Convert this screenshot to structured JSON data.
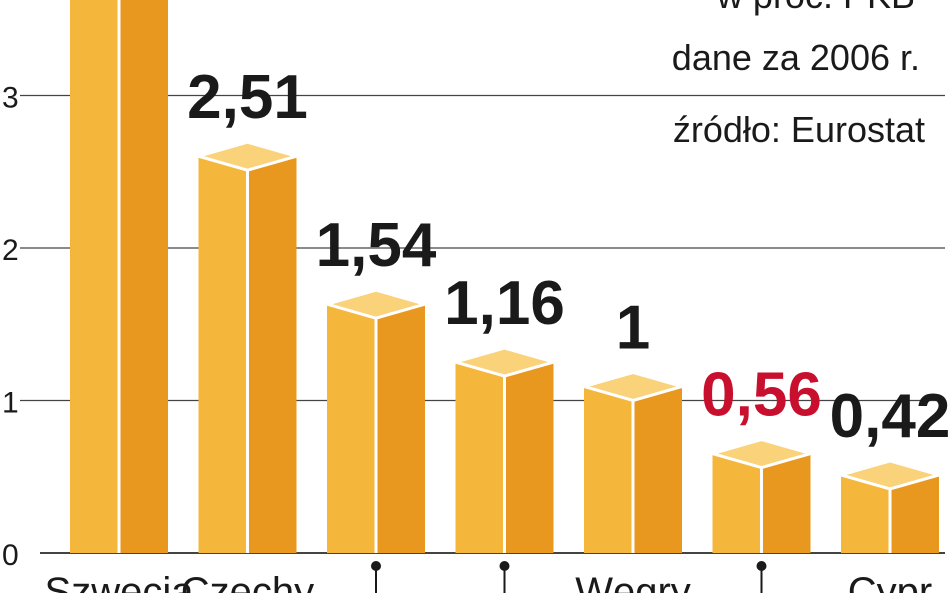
{
  "chart_data": {
    "type": "bar",
    "title": "w proc. PKB",
    "notes": [
      "dane za 2006 r.",
      "źródło: Eurostat"
    ],
    "categories": [
      "Szwecja",
      "Czechy",
      "",
      "",
      "Węgry",
      "",
      "Cypr"
    ],
    "values": [
      3.75,
      2.51,
      1.54,
      1.16,
      1,
      0.56,
      0.42
    ],
    "value_labels": [
      "",
      "2,51",
      "1,54",
      "1,16",
      "1",
      "0,56",
      "0,42"
    ],
    "highlight_index": 5,
    "y_ticks": [
      0,
      1,
      2,
      3
    ],
    "ylim": [
      0,
      3.75
    ],
    "grid": true,
    "colors": {
      "bar_light": "#F4B73C",
      "bar_dark": "#E8981F",
      "bar_top": "#F9D27A",
      "highlight_text": "#C8102E",
      "text": "#1a1a1a",
      "grid": "#444444"
    }
  }
}
